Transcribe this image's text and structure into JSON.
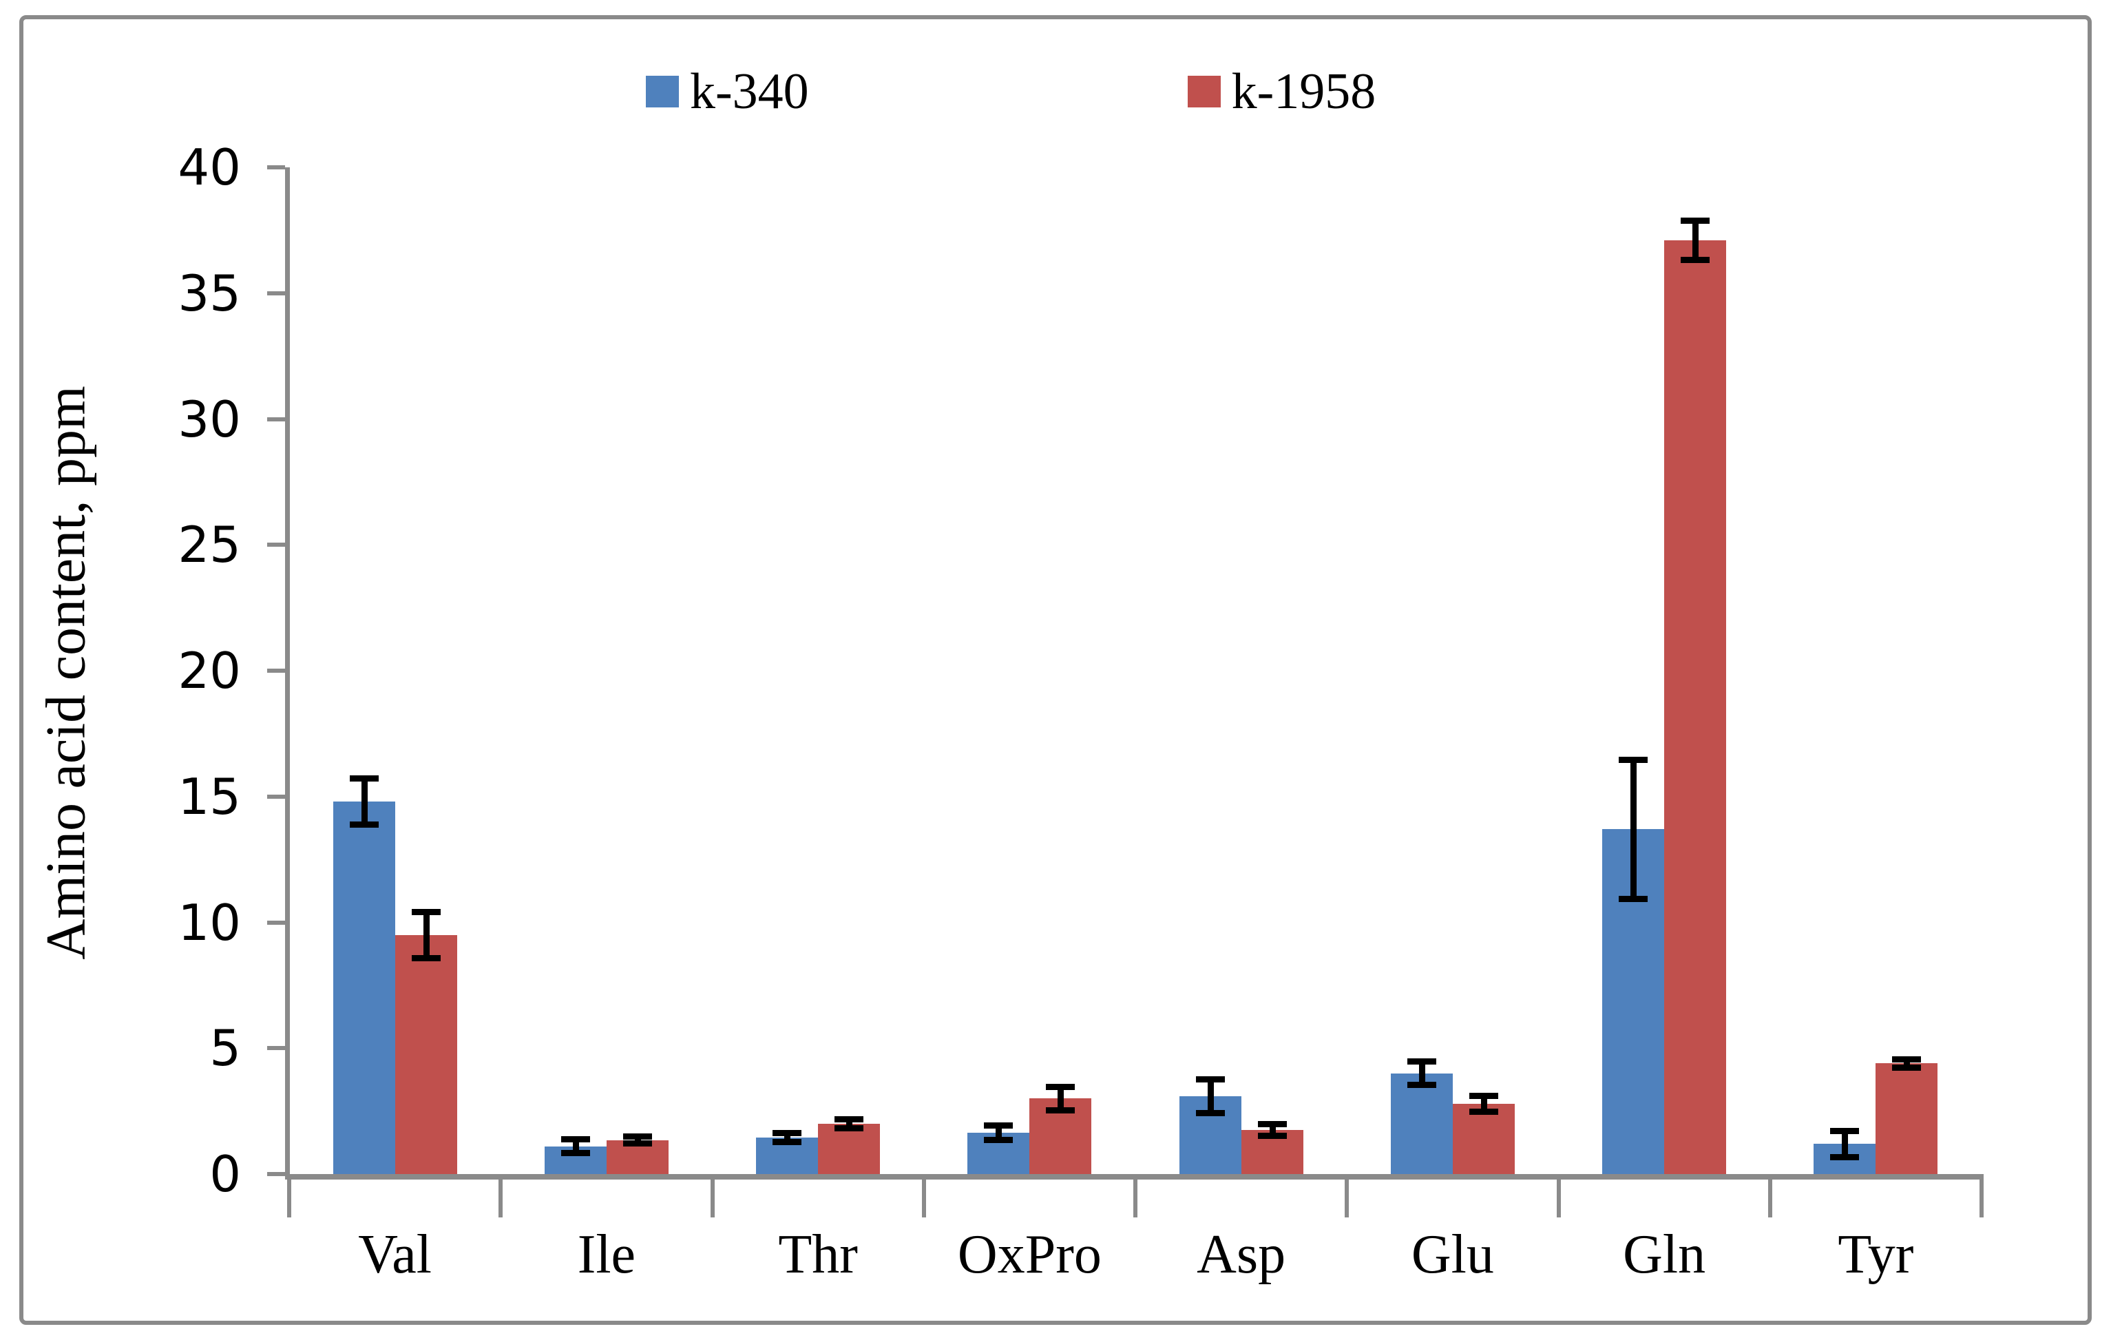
{
  "legend": {
    "items": [
      {
        "label": "k-340",
        "color": "#4F81BD"
      },
      {
        "label": "k-1958",
        "color": "#C0504D"
      }
    ]
  },
  "y_axis": {
    "title": "Amino acid content, ppm",
    "min": 0,
    "max": 40,
    "tick_step": 5,
    "ticks": [
      "0",
      "5",
      "10",
      "15",
      "20",
      "25",
      "30",
      "35",
      "40"
    ]
  },
  "x_axis": {
    "categories": [
      "Val",
      "Ile",
      "Thr",
      "OxPro",
      "Asp",
      "Glu",
      "Gln",
      "Tyr"
    ]
  },
  "chart_data": {
    "type": "bar",
    "title": "",
    "xlabel": "",
    "ylabel": "Amino acid content, ppm",
    "ylim": [
      0,
      40
    ],
    "grid": false,
    "legend_position": "top",
    "error_bars": true,
    "categories": [
      "Val",
      "Ile",
      "Thr",
      "OxPro",
      "Asp",
      "Glu",
      "Gln",
      "Tyr"
    ],
    "series": [
      {
        "name": "k-340",
        "color": "#4F81BD",
        "values": [
          14.8,
          1.1,
          1.45,
          1.65,
          3.1,
          4.0,
          13.7,
          1.2
        ],
        "errors": [
          0.85,
          0.2,
          0.1,
          0.22,
          0.6,
          0.4,
          2.7,
          0.45
        ]
      },
      {
        "name": "k-1958",
        "color": "#C0504D",
        "values": [
          9.5,
          1.35,
          2.0,
          3.0,
          1.75,
          2.8,
          37.1,
          4.4
        ],
        "errors": [
          0.85,
          0.07,
          0.12,
          0.4,
          0.17,
          0.25,
          0.7,
          0.1
        ]
      }
    ],
    "axis_color": "#8a8a8a",
    "error_bar_color": "#000000"
  }
}
